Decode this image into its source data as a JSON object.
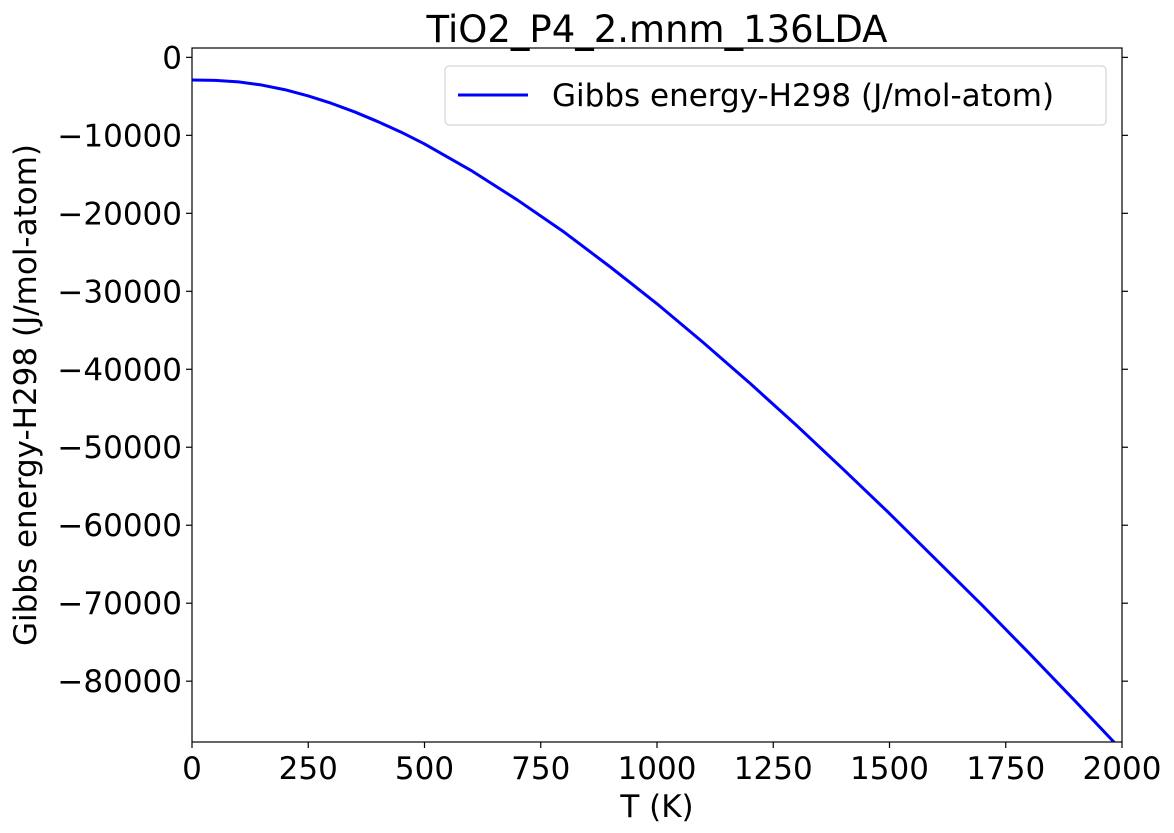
{
  "chart_data": {
    "type": "line",
    "title": "TiO2_P4_2.mnm_136LDA",
    "xlabel": "T (K)",
    "ylabel": "Gibbs energy-H298 (J/mol-atom)",
    "xlim": [
      0,
      2000
    ],
    "ylim": [
      -87800,
      1200
    ],
    "x_ticks": [
      0,
      250,
      500,
      750,
      1000,
      1250,
      1500,
      1750,
      2000
    ],
    "x_tick_labels": [
      "0",
      "250",
      "500",
      "750",
      "1000",
      "1250",
      "1500",
      "1750",
      "2000"
    ],
    "y_ticks": [
      0,
      -10000,
      -20000,
      -30000,
      -40000,
      -50000,
      -60000,
      -70000,
      -80000
    ],
    "y_tick_labels": [
      "0",
      "−10000",
      "−20000",
      "−30000",
      "−40000",
      "−50000",
      "−60000",
      "−70000",
      "−80000"
    ],
    "grid": false,
    "legend_position": "top-right",
    "series": [
      {
        "name": "Gibbs energy-H298 (J/mol-atom)",
        "color": "#0000ff",
        "x": [
          0,
          50,
          100,
          150,
          200,
          250,
          300,
          350,
          400,
          450,
          500,
          600,
          700,
          800,
          900,
          1000,
          1100,
          1200,
          1300,
          1400,
          1500,
          1600,
          1700,
          1800,
          1900,
          2000
        ],
        "y": [
          -2900,
          -2950,
          -3150,
          -3550,
          -4150,
          -4950,
          -5900,
          -7000,
          -8250,
          -9600,
          -11100,
          -14500,
          -18300,
          -22400,
          -26900,
          -31600,
          -36600,
          -41800,
          -47200,
          -52800,
          -58500,
          -64400,
          -70300,
          -76400,
          -82600,
          -88900
        ]
      }
    ]
  }
}
